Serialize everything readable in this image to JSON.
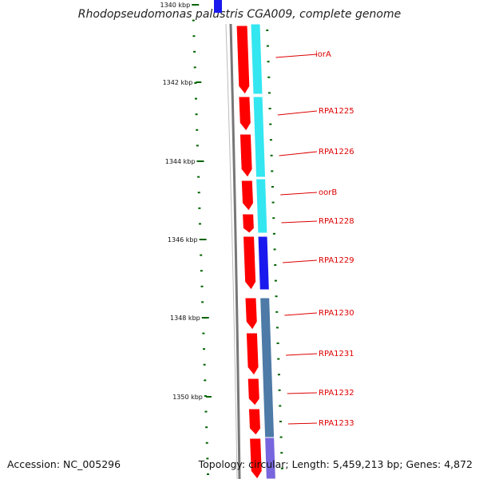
{
  "title": "Rhodopseudomonas palustris CGA009, complete genome",
  "footer": {
    "accession": "Accession: NC_005296",
    "topology": "Topology: circular; Length: 5,459,213 bp; Genes: 4,872"
  },
  "colors": {
    "backbone": "#777777",
    "forward_cds": "#ff0000",
    "tick": "#006400",
    "label": "#dd0000",
    "track_cyan": "#33e6f0",
    "track_blue": "#1a1aee",
    "track_steel": "#4d7aa6",
    "track_lavender": "#7766dd"
  },
  "scale_labels": [
    "1340 kbp",
    "1342 kbp",
    "1344 kbp",
    "1346 kbp",
    "1348 kbp",
    "1350 kbp"
  ],
  "genes": [
    "iorA",
    "RPA1225",
    "RPA1226",
    "oorB",
    "RPA1228",
    "RPA1229",
    "RPA1230",
    "RPA1231",
    "RPA1232",
    "RPA1233"
  ]
}
